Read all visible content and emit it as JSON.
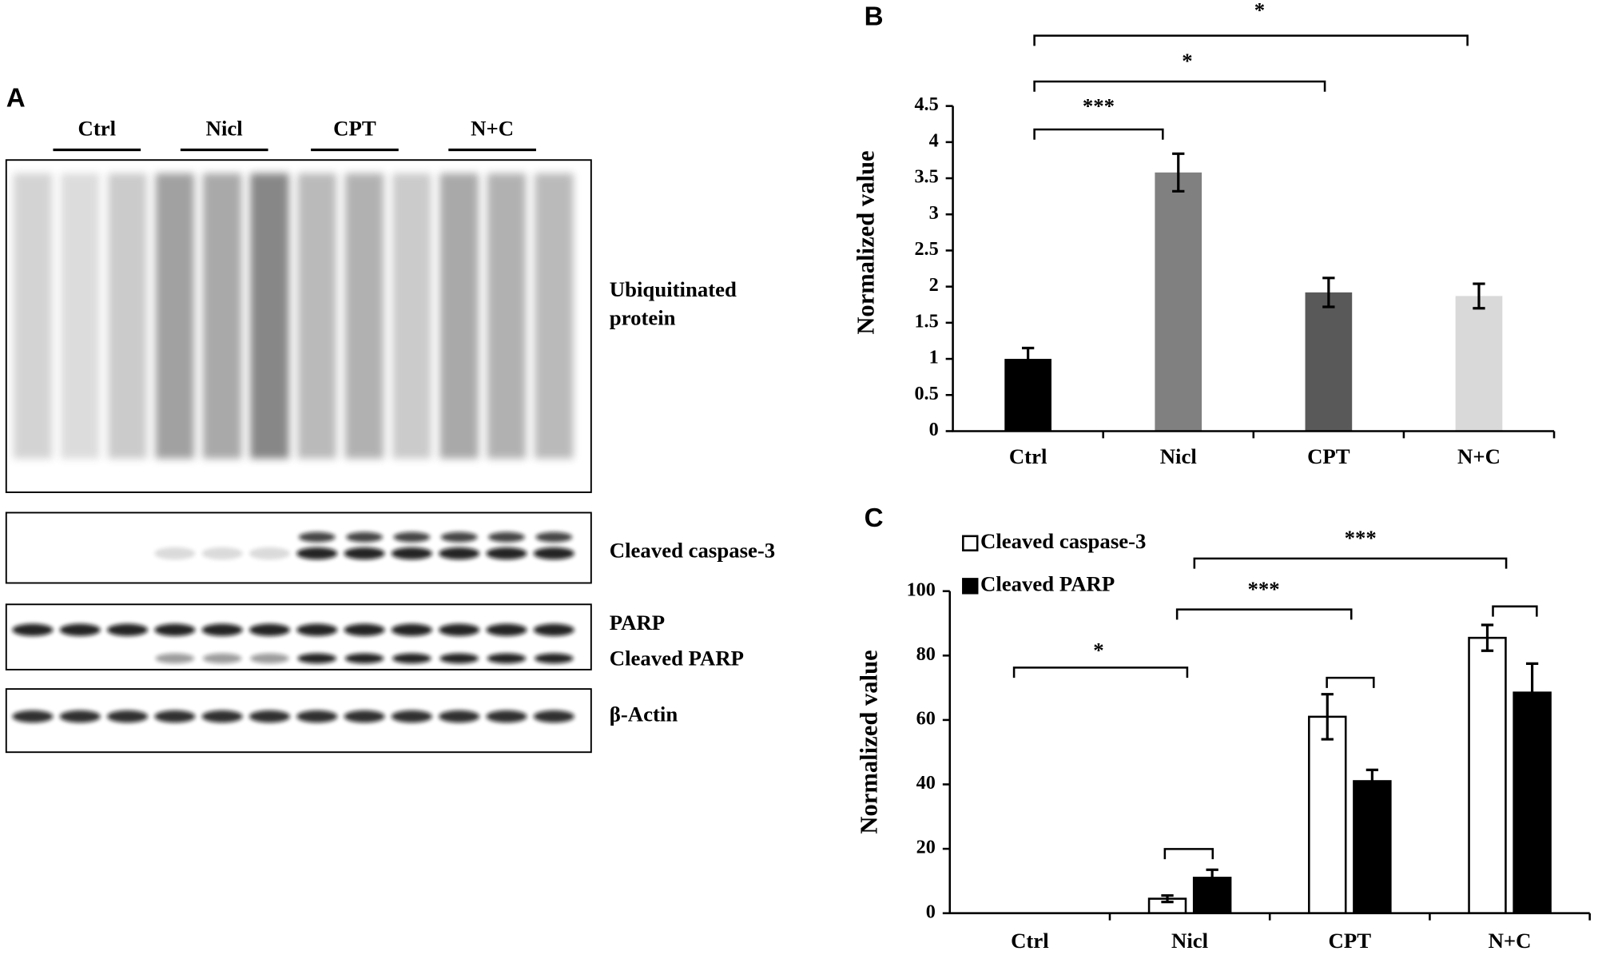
{
  "panel_a": {
    "label": "A",
    "groups": [
      "Ctrl",
      "Nicl",
      "CPT",
      "N+C"
    ],
    "bands": [
      "Ubiquitinated",
      "protein",
      "Cleaved caspase-3",
      "PARP",
      "Cleaved PARP",
      "β-Actin"
    ]
  },
  "chart_data": [
    {
      "type": "bar",
      "label": "B",
      "ylabel": "Normalized value",
      "categories": [
        "Ctrl",
        "Nicl",
        "CPT",
        "N+C"
      ],
      "values": [
        1.0,
        3.58,
        1.92,
        1.87
      ],
      "errors": [
        0.15,
        0.26,
        0.2,
        0.17
      ],
      "colors": [
        "#000000",
        "#808080",
        "#595959",
        "#d9d9d9"
      ],
      "ylim": [
        0,
        4.5
      ],
      "yticks": [
        0,
        0.5,
        1,
        1.5,
        2,
        2.5,
        3,
        3.5,
        4,
        4.5
      ],
      "annotations": [
        "***",
        "*",
        "*"
      ]
    },
    {
      "type": "grouped-bar",
      "label": "C",
      "ylabel": "Normalized value",
      "categories": [
        "Ctrl",
        "Nicl",
        "CPT",
        "N+C"
      ],
      "series": [
        {
          "name": "Cleaved caspase-3",
          "color": "#ffffff",
          "values": [
            0,
            4.5,
            61,
            85.5
          ],
          "errors": [
            0,
            1,
            7,
            4
          ]
        },
        {
          "name": "Cleaved PARP",
          "color": "#000000",
          "values": [
            0,
            11,
            41,
            68.5
          ],
          "errors": [
            0,
            2.5,
            3.5,
            9
          ]
        }
      ],
      "ylim": [
        0,
        100
      ],
      "yticks": [
        0,
        20,
        40,
        60,
        80,
        100
      ],
      "annotations": [
        "*",
        "***",
        "***"
      ]
    }
  ]
}
